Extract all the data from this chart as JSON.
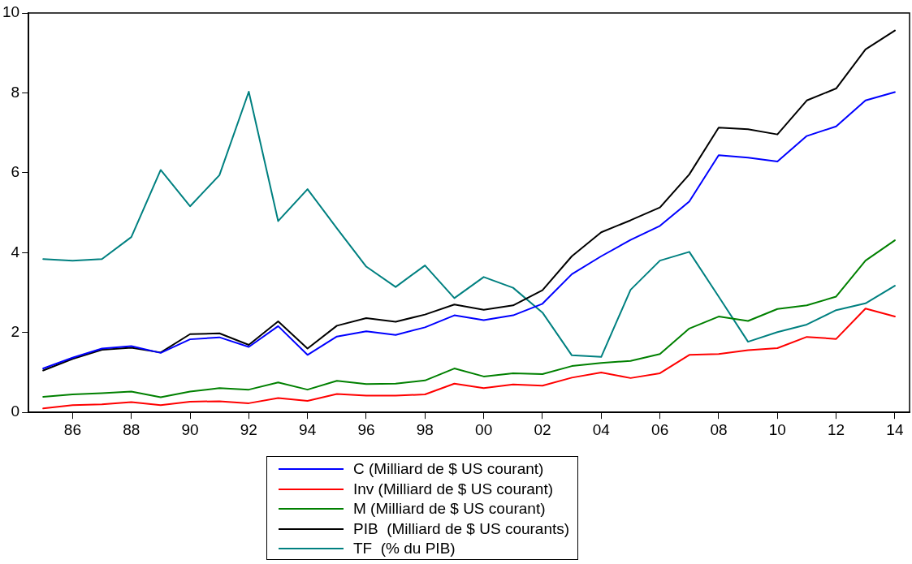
{
  "chart_data": {
    "type": "line",
    "x": [
      1985,
      1986,
      1987,
      1988,
      1989,
      1990,
      1991,
      1992,
      1993,
      1994,
      1995,
      1996,
      1997,
      1998,
      1999,
      2000,
      2001,
      2002,
      2003,
      2004,
      2005,
      2006,
      2007,
      2008,
      2009,
      2010,
      2011,
      2012,
      2013,
      2014
    ],
    "series": [
      {
        "name": "C (Milliard de $ US courant)",
        "color": "#0000ff",
        "values": [
          1.1,
          1.37,
          1.6,
          1.66,
          1.49,
          1.83,
          1.88,
          1.64,
          2.16,
          1.44,
          1.9,
          2.03,
          1.94,
          2.13,
          2.43,
          2.31,
          2.43,
          2.72,
          3.46,
          3.91,
          4.32,
          4.67,
          5.28,
          6.44,
          6.38,
          6.28,
          6.92,
          7.16,
          7.81,
          8.02
        ]
      },
      {
        "name": "Inv (Milliard de $ US courant)",
        "color": "#ff0000",
        "values": [
          0.1,
          0.18,
          0.2,
          0.26,
          0.18,
          0.27,
          0.28,
          0.23,
          0.36,
          0.29,
          0.46,
          0.42,
          0.42,
          0.45,
          0.72,
          0.61,
          0.7,
          0.67,
          0.87,
          1.0,
          0.86,
          0.98,
          1.44,
          1.46,
          1.56,
          1.61,
          1.89,
          1.84,
          2.6,
          2.4
        ]
      },
      {
        "name": "M (Milliard de $ US courant)",
        "color": "#008000",
        "values": [
          0.39,
          0.45,
          0.48,
          0.52,
          0.38,
          0.52,
          0.61,
          0.57,
          0.75,
          0.57,
          0.79,
          0.71,
          0.72,
          0.8,
          1.1,
          0.9,
          0.98,
          0.96,
          1.16,
          1.24,
          1.29,
          1.46,
          2.1,
          2.4,
          2.29,
          2.59,
          2.68,
          2.9,
          3.8,
          4.31
        ]
      },
      {
        "name": "PIB  (Milliard de $ US courants)",
        "color": "#000000",
        "values": [
          1.05,
          1.34,
          1.57,
          1.62,
          1.5,
          1.96,
          1.98,
          1.69,
          2.28,
          1.6,
          2.17,
          2.36,
          2.27,
          2.45,
          2.7,
          2.57,
          2.68,
          3.06,
          3.91,
          4.51,
          4.81,
          5.13,
          5.96,
          7.13,
          7.09,
          6.96,
          7.81,
          8.11,
          9.09,
          9.56
        ]
      },
      {
        "name": "TF  (% du PIB)",
        "color": "#008080",
        "values": [
          3.84,
          3.8,
          3.84,
          4.39,
          6.07,
          5.16,
          5.94,
          8.03,
          4.79,
          5.59,
          4.61,
          3.65,
          3.14,
          3.68,
          2.86,
          3.39,
          3.12,
          2.5,
          1.43,
          1.39,
          3.07,
          3.8,
          4.02,
          2.9,
          1.77,
          2.01,
          2.2,
          2.56,
          2.73,
          3.17
        ]
      }
    ],
    "xlim": [
      1984.5,
      2014.5
    ],
    "xticks": [
      {
        "value": 1986,
        "label": "86"
      },
      {
        "value": 1988,
        "label": "88"
      },
      {
        "value": 1990,
        "label": "90"
      },
      {
        "value": 1992,
        "label": "92"
      },
      {
        "value": 1994,
        "label": "94"
      },
      {
        "value": 1996,
        "label": "96"
      },
      {
        "value": 1998,
        "label": "98"
      },
      {
        "value": 2000,
        "label": "00"
      },
      {
        "value": 2002,
        "label": "02"
      },
      {
        "value": 2004,
        "label": "04"
      },
      {
        "value": 2006,
        "label": "06"
      },
      {
        "value": 2008,
        "label": "08"
      },
      {
        "value": 2010,
        "label": "10"
      },
      {
        "value": 2012,
        "label": "12"
      },
      {
        "value": 2014,
        "label": "14"
      }
    ],
    "ylim": [
      0,
      10
    ],
    "yticks": [
      0,
      2,
      4,
      6,
      8,
      10
    ],
    "grid": false,
    "legend": "bottom",
    "marker": "none",
    "line_style": "solid"
  }
}
